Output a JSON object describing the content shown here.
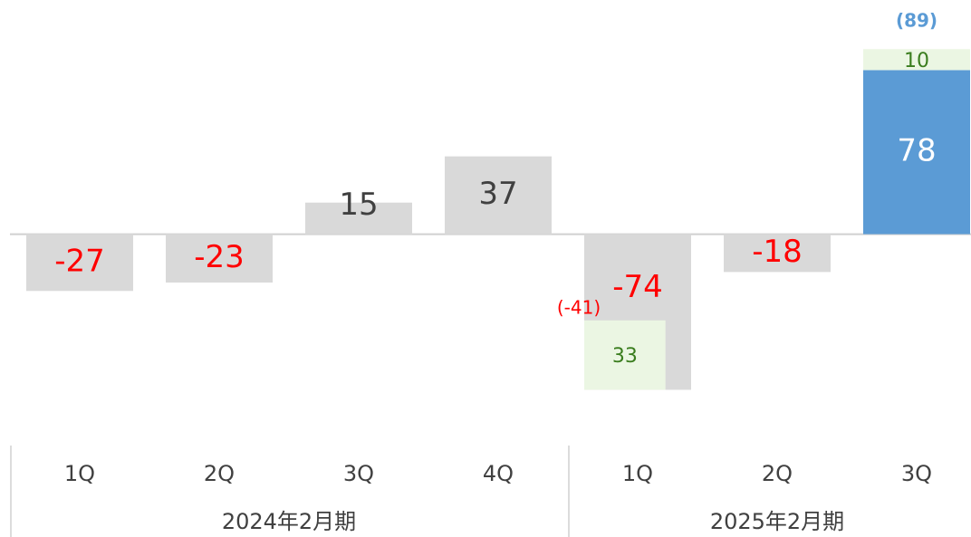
{
  "chart_data": {
    "type": "bar",
    "groups": [
      {
        "name": "2024年2月期",
        "categories": [
          "1Q",
          "2Q",
          "3Q",
          "4Q"
        ]
      },
      {
        "name": "2025年2月期",
        "categories": [
          "1Q",
          "2Q",
          "3Q"
        ]
      }
    ],
    "values": [
      -27,
      -23,
      15,
      37,
      -74,
      -18,
      78
    ],
    "colors": [
      "#d9d9d9",
      "#d9d9d9",
      "#d9d9d9",
      "#d9d9d9",
      "#d9d9d9",
      "#d9d9d9",
      "#5b9bd5"
    ],
    "value_label_colors": [
      "#ff0000",
      "#ff0000",
      "#404040",
      "#404040",
      "#ff0000",
      "#ff0000",
      "#ffffff"
    ],
    "adjustments": {
      "values": [
        null,
        null,
        null,
        null,
        33,
        null,
        10
      ],
      "color": "#ebf6e3",
      "label_color": "#3a7d1e"
    },
    "annotations": [
      {
        "text": "(-41)",
        "index": 4,
        "color": "#ff0000"
      },
      {
        "text": "(89)",
        "index": 6,
        "color": "#5b9bd5"
      }
    ],
    "ylim": [
      -82,
      98
    ]
  }
}
